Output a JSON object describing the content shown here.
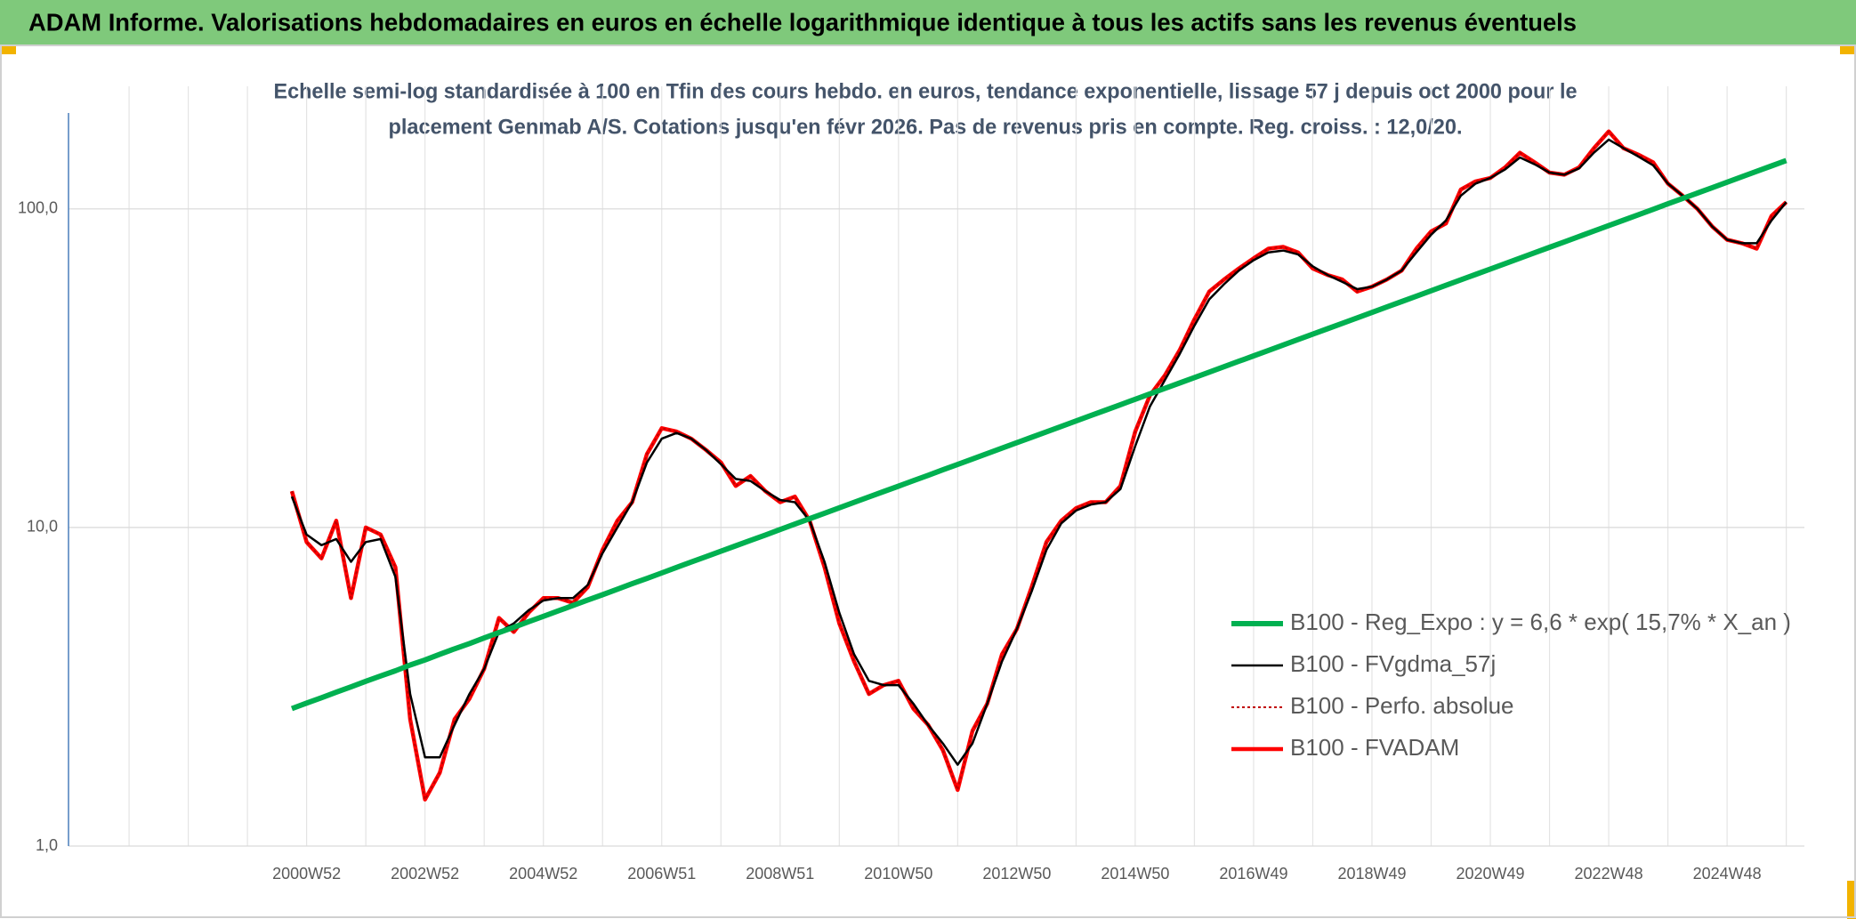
{
  "chart_data": {
    "type": "line",
    "title": "ADAM Informe. Valorisations hebdomadaires en euros en échelle logarithmique identique à tous les actifs sans les revenus éventuels",
    "subtitle": [
      "Echelle semi-log standardisée à 100 en Tfin des cours hebdo. en euros, tendance exponentielle, lissage 57 j depuis oct 2000 pour le",
      "placement Genmab A/S. Cotations jusqu'en févr 2026. Pas de revenus pris en compte. Reg. croiss. : 12,0/20."
    ],
    "log_scale": true,
    "grid": true,
    "legend": "lower right",
    "ylim": [
      1,
      200
    ],
    "yticks": [
      {
        "value": 1,
        "label": "1,0"
      },
      {
        "value": 10,
        "label": "10,0"
      },
      {
        "value": 100,
        "label": "100,0"
      }
    ],
    "categories": [
      null,
      "2000W52",
      null,
      null,
      null,
      null,
      null,
      null,
      null,
      "2002W52",
      null,
      null,
      null,
      null,
      null,
      null,
      null,
      "2004W52",
      null,
      null,
      null,
      null,
      null,
      null,
      null,
      "2006W51",
      null,
      null,
      null,
      null,
      null,
      null,
      null,
      "2008W51",
      null,
      null,
      null,
      null,
      null,
      null,
      null,
      "2010W50",
      null,
      null,
      null,
      null,
      null,
      null,
      null,
      "2012W50",
      null,
      null,
      null,
      null,
      null,
      null,
      null,
      "2014W50",
      null,
      null,
      null,
      null,
      null,
      null,
      null,
      "2016W49",
      null,
      null,
      null,
      null,
      null,
      null,
      null,
      "2018W49",
      null,
      null,
      null,
      null,
      null,
      null,
      null,
      "2020W49",
      null,
      null,
      null,
      null,
      null,
      null,
      null,
      "2022W48",
      null,
      null,
      null,
      null,
      null,
      null,
      null,
      "2024W48",
      null,
      null,
      null,
      null
    ],
    "series": [
      {
        "name": "B100 - Reg_Expo : y = 6,6 * exp( 15,7% *  X_an )",
        "color": "#00b050",
        "line_style": "solid",
        "values": [
          2.7,
          2.81,
          2.92,
          3.04,
          3.16,
          3.29,
          3.42,
          3.55,
          3.7,
          3.84,
          4.0,
          4.16,
          4.32,
          4.5,
          4.68,
          4.86,
          5.06,
          5.26,
          5.47,
          5.69,
          5.92,
          6.15,
          6.4,
          6.66,
          6.92,
          7.2,
          7.49,
          7.79,
          8.1,
          8.42,
          8.76,
          9.11,
          9.47,
          9.85,
          10.25,
          10.66,
          11.08,
          11.53,
          11.99,
          12.47,
          12.97,
          13.48,
          14.02,
          14.58,
          15.17,
          15.77,
          16.41,
          17.06,
          17.74,
          18.45,
          19.19,
          19.96,
          20.76,
          21.59,
          22.45,
          23.35,
          24.28,
          25.26,
          26.27,
          27.32,
          28.41,
          29.55,
          30.73,
          31.96,
          33.24,
          34.56,
          35.95,
          37.38,
          38.88,
          40.44,
          42.05,
          43.73,
          45.48,
          47.3,
          49.2,
          51.16,
          53.21,
          55.34,
          57.55,
          59.86,
          62.25,
          64.74,
          67.33,
          70.02,
          72.82,
          75.74,
          78.77,
          81.92,
          85.2,
          88.6,
          92.15,
          95.83,
          99.67,
          103.7,
          107.8,
          112.1,
          116.6,
          121.3,
          126.1,
          131.2,
          136.4,
          141.9
        ]
      },
      {
        "name": "B100 - FVgdma_57j",
        "color": "#000000",
        "line_style": "solid",
        "values": [
          12.5,
          9.5,
          8.8,
          9.2,
          7.8,
          9.0,
          9.2,
          7.0,
          3.0,
          1.9,
          1.9,
          2.4,
          3.0,
          3.6,
          4.7,
          5.0,
          5.5,
          5.9,
          6.0,
          6.0,
          6.6,
          8.3,
          10.0,
          12.0,
          16.0,
          19.0,
          19.8,
          19.0,
          17.5,
          15.8,
          14.2,
          14.0,
          13.0,
          12.2,
          12.0,
          10.5,
          7.8,
          5.4,
          4.0,
          3.3,
          3.2,
          3.2,
          2.8,
          2.4,
          2.1,
          1.8,
          2.1,
          2.8,
          3.8,
          4.8,
          6.3,
          8.5,
          10.3,
          11.3,
          11.8,
          12.0,
          13.2,
          18,
          24,
          29,
          35,
          43,
          52,
          58,
          64,
          69,
          73,
          74,
          72,
          66,
          62,
          59,
          56,
          57,
          60,
          64,
          73,
          83,
          92,
          110,
          120,
          125,
          133,
          145,
          138,
          130,
          128,
          134,
          150,
          165,
          155,
          146,
          137,
          120,
          110,
          100,
          88,
          80,
          78,
          78,
          92,
          105
        ]
      },
      {
        "name": "B100 - Perfo. absolue",
        "color": "#c00000",
        "line_style": "dotted",
        "values": [
          13,
          9,
          8,
          10.5,
          6,
          10,
          9.5,
          7.5,
          2.5,
          1.4,
          1.7,
          2.5,
          2.9,
          3.6,
          5.2,
          4.7,
          5.4,
          6.0,
          6.0,
          5.8,
          6.5,
          8.5,
          10.5,
          12,
          17,
          20.5,
          20,
          19,
          17.5,
          16,
          13.5,
          14.5,
          13,
          12,
          12.5,
          10.5,
          7.5,
          5,
          3.8,
          3.0,
          3.2,
          3.3,
          2.7,
          2.4,
          2.0,
          1.5,
          2.3,
          2.8,
          4.0,
          4.8,
          6.5,
          9,
          10.5,
          11.5,
          12,
          12,
          13.5,
          20,
          26,
          30,
          36,
          45,
          55,
          60,
          65,
          70,
          75,
          76,
          73,
          65,
          62,
          60,
          55,
          57,
          60,
          64,
          75,
          85,
          90,
          115,
          122,
          125,
          135,
          150,
          140,
          130,
          128,
          135,
          155,
          175,
          155,
          148,
          140,
          120,
          110,
          100,
          88,
          80,
          78,
          75,
          95,
          105
        ]
      },
      {
        "name": "B100 - FVADAM",
        "color": "#ff0000",
        "line_style": "solid",
        "values": [
          13,
          9,
          8,
          10.5,
          6,
          10,
          9.5,
          7.5,
          2.5,
          1.4,
          1.7,
          2.5,
          2.9,
          3.6,
          5.2,
          4.7,
          5.4,
          6.0,
          6.0,
          5.8,
          6.5,
          8.5,
          10.5,
          12,
          17,
          20.5,
          20,
          19,
          17.5,
          16,
          13.5,
          14.5,
          13,
          12,
          12.5,
          10.5,
          7.5,
          5,
          3.8,
          3.0,
          3.2,
          3.3,
          2.7,
          2.4,
          2.0,
          1.5,
          2.3,
          2.8,
          4.0,
          4.8,
          6.5,
          9,
          10.5,
          11.5,
          12,
          12,
          13.5,
          20,
          26,
          30,
          36,
          45,
          55,
          60,
          65,
          70,
          75,
          76,
          73,
          65,
          62,
          60,
          55,
          57,
          60,
          64,
          75,
          85,
          90,
          115,
          122,
          125,
          135,
          150,
          140,
          130,
          128,
          135,
          155,
          175,
          155,
          148,
          140,
          120,
          110,
          100,
          88,
          80,
          78,
          75,
          95,
          105
        ]
      }
    ]
  }
}
